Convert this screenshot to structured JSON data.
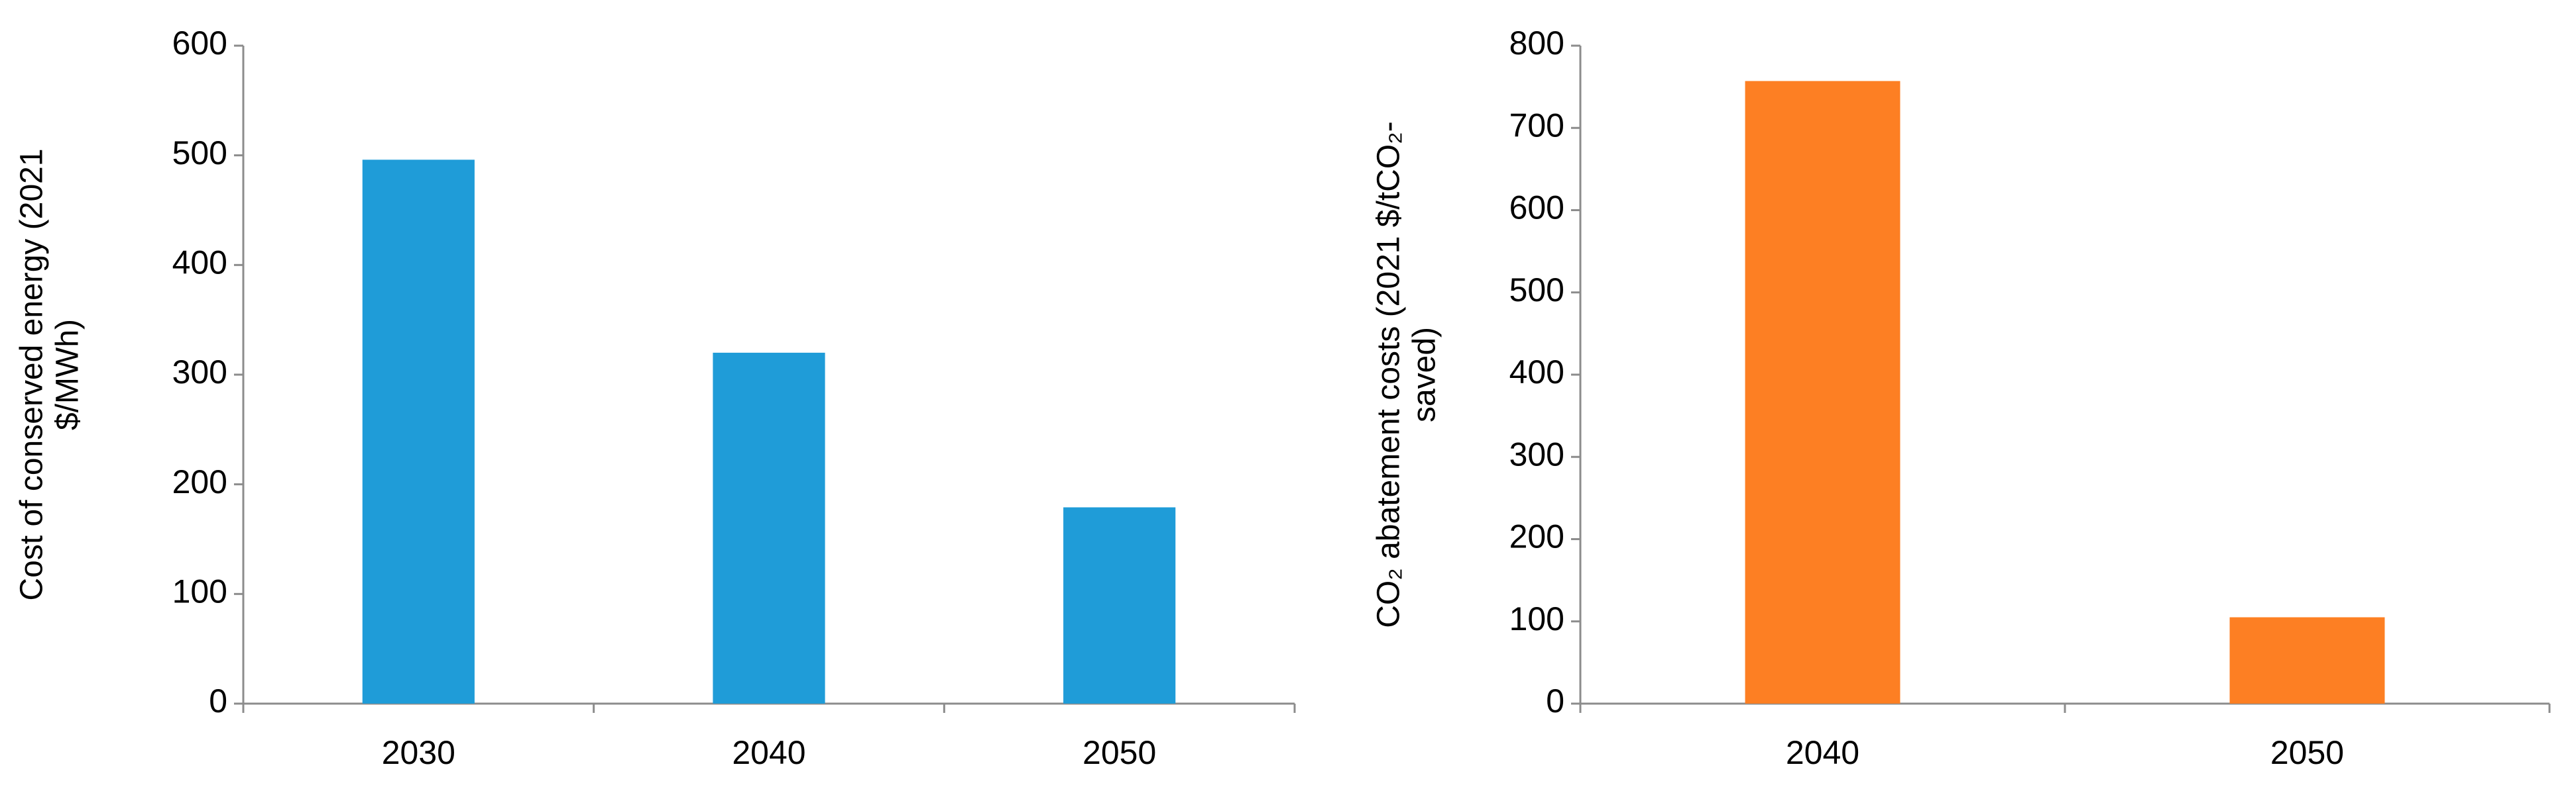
{
  "chart_data": [
    {
      "type": "bar",
      "y_label": "Cost of conserved energy (2021 $/MWh)",
      "categories": [
        "2030",
        "2040",
        "2050"
      ],
      "values": [
        496,
        320,
        179
      ],
      "color": "#1f9cd8",
      "ylim": [
        0,
        600
      ],
      "yticks": [
        0,
        100,
        200,
        300,
        400,
        500,
        600
      ],
      "grid": false
    },
    {
      "type": "bar",
      "y_label": "CO₂ abatement costs (2021 $/tCO₂-saved)",
      "categories": [
        "2040",
        "2050"
      ],
      "values": [
        757,
        105
      ],
      "color": "#fd7f23",
      "ylim": [
        0,
        800
      ],
      "yticks": [
        0,
        100,
        200,
        300,
        400,
        500,
        600,
        700,
        800
      ],
      "grid": false
    }
  ]
}
